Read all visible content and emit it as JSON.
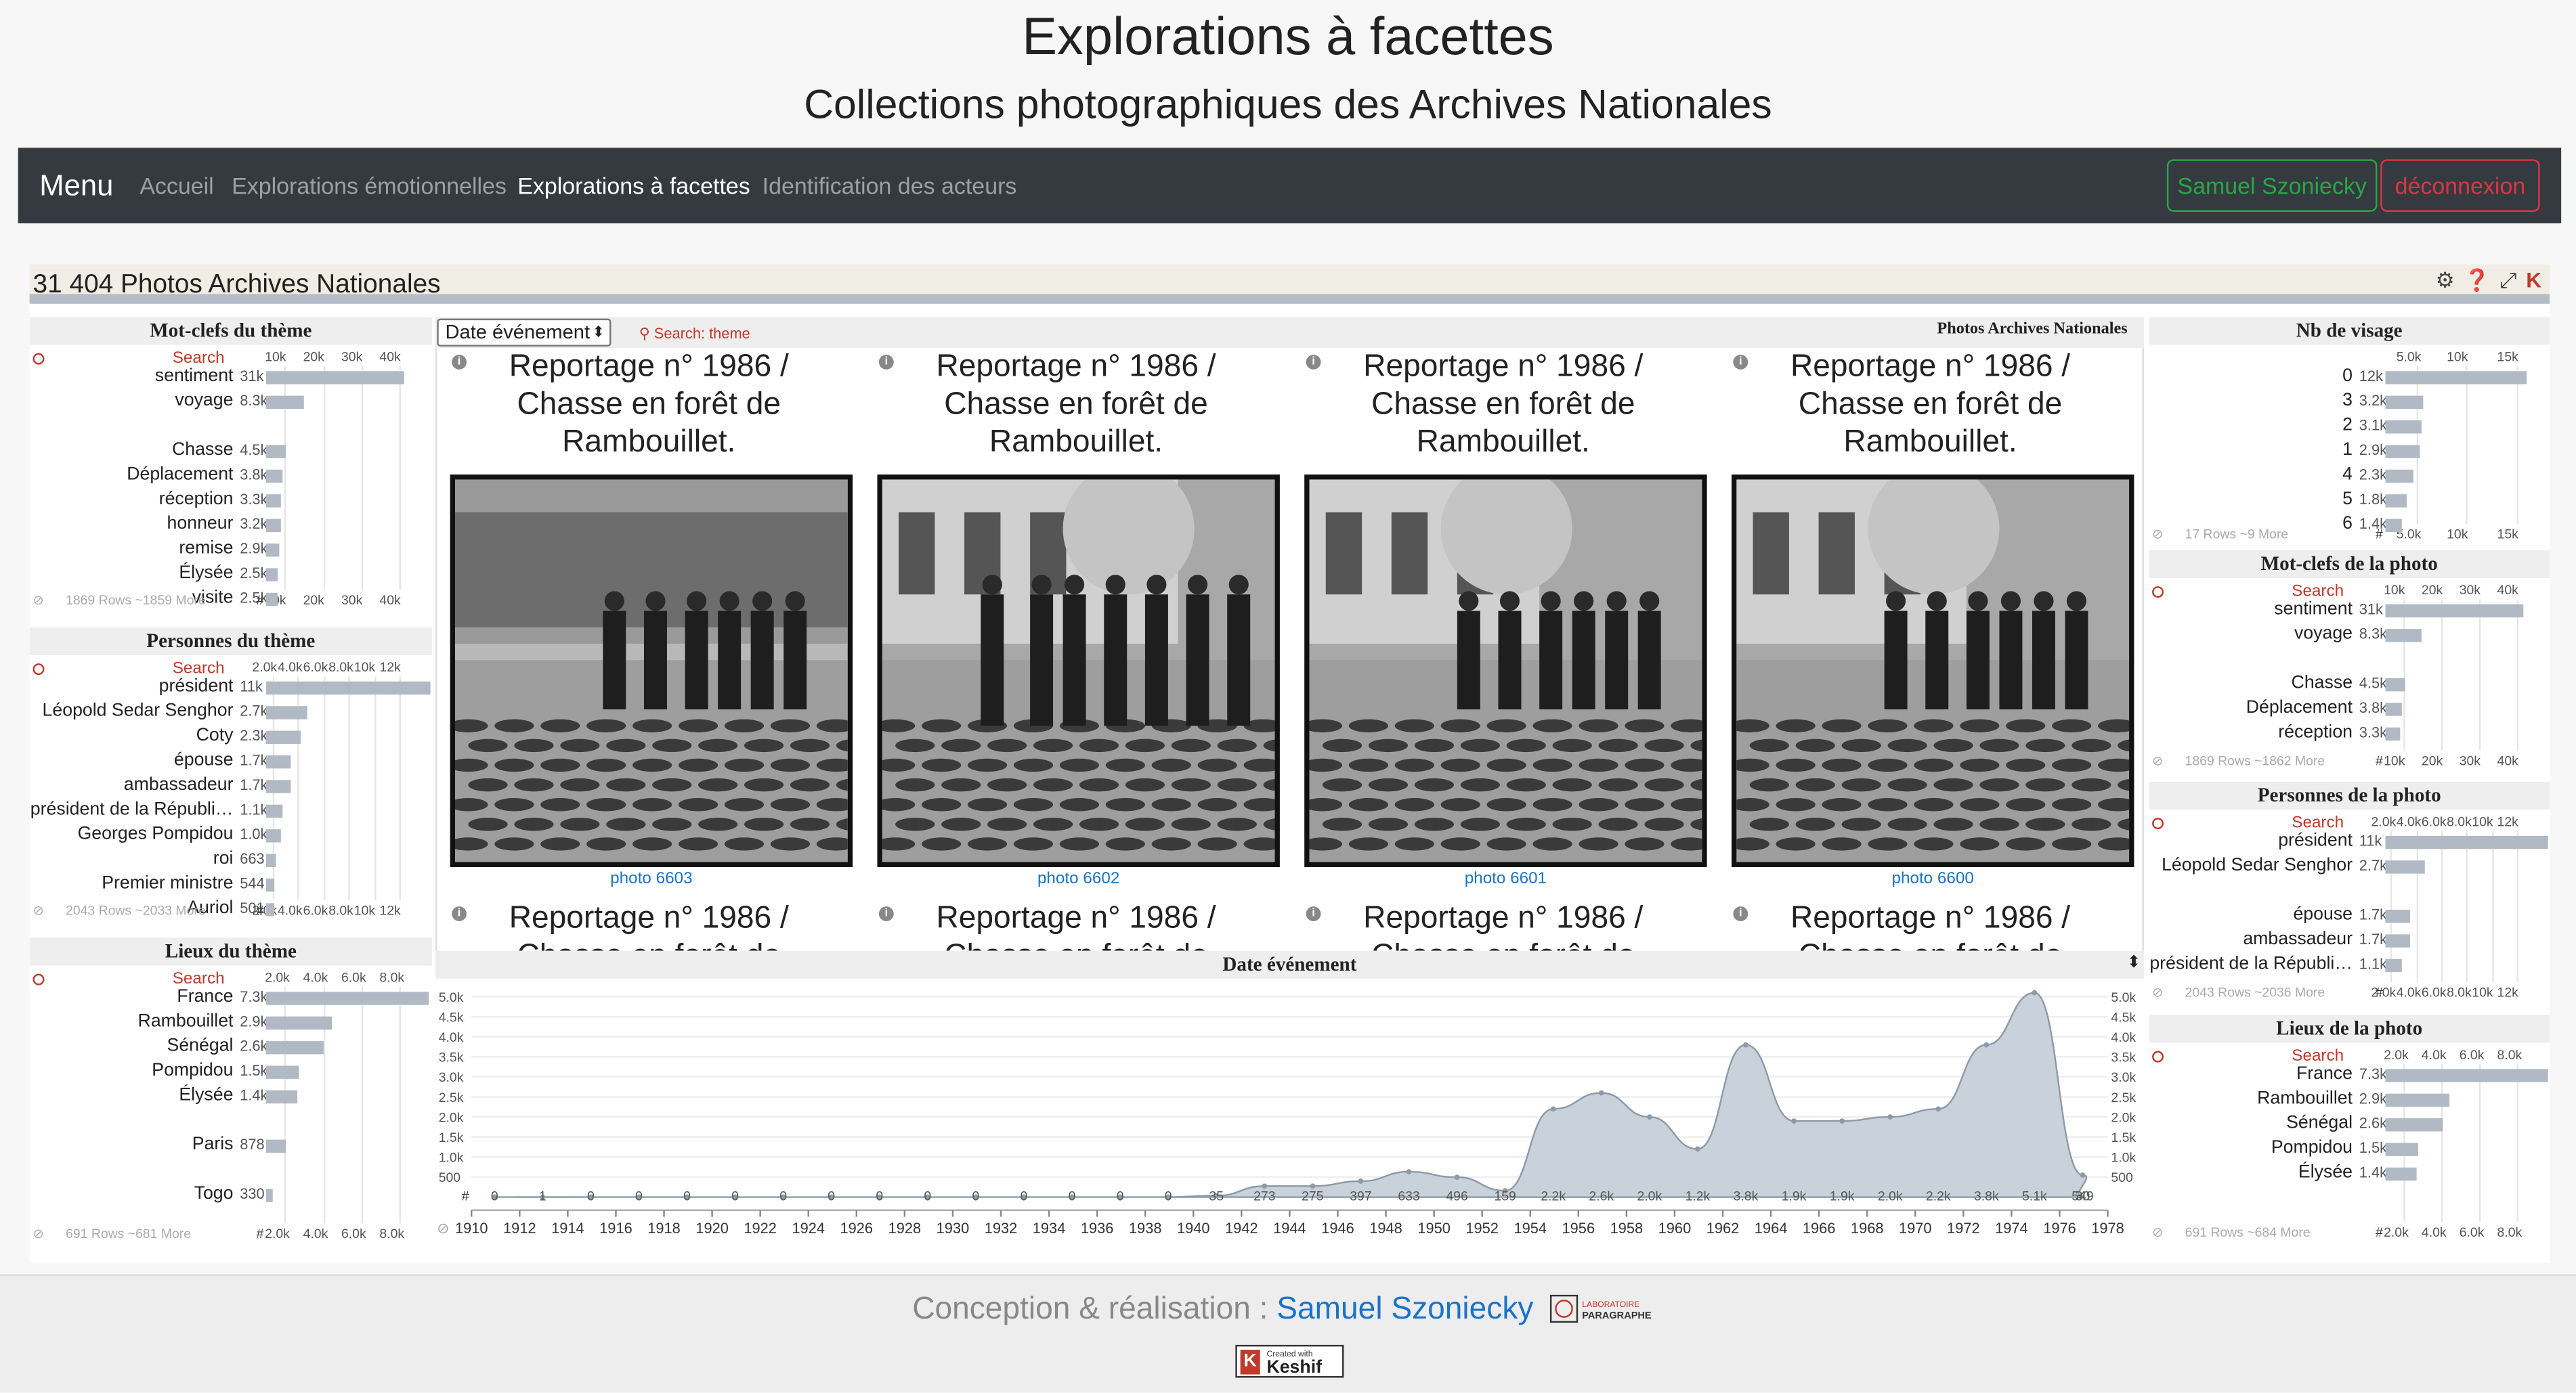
{
  "header": {
    "title": "Explorations à facettes",
    "subtitle": "Collections photographiques des Archives Nationales"
  },
  "nav": {
    "brand": "Menu",
    "links": [
      "Accueil",
      "Explorations émotionnelles",
      "Explorations à facettes",
      "Identification des acteurs"
    ],
    "active": 2,
    "user_button": "Samuel Szoniecky",
    "logout_button": "déconnexion"
  },
  "dashboard": {
    "count": "31 404",
    "title": "Photos Archives Nationales",
    "icons": [
      "gear-icon",
      "help-icon",
      "expand-icon",
      "keshif-icon"
    ]
  },
  "panels": {
    "left": [
      {
        "title": "Mot-clefs du thème",
        "search": "Search",
        "ticks": [
          "10k",
          "20k",
          "30k",
          "40k"
        ],
        "max": 40000,
        "rows": [
          {
            "label": "sentiment",
            "count": "31k",
            "value": 31000
          },
          {
            "label": "voyage",
            "count": "8.3k",
            "value": 8300
          },
          {
            "label": "",
            "count": "",
            "value": 0
          },
          {
            "label": "Chasse",
            "count": "4.5k",
            "value": 4500
          },
          {
            "label": "Déplacement",
            "count": "3.8k",
            "value": 3800
          },
          {
            "label": "réception",
            "count": "3.3k",
            "value": 3300
          },
          {
            "label": "honneur",
            "count": "3.2k",
            "value": 3200
          },
          {
            "label": "remise",
            "count": "2.9k",
            "value": 2900
          },
          {
            "label": "Élysée",
            "count": "2.5k",
            "value": 2500
          },
          {
            "label": "visite",
            "count": "2.5k",
            "value": 2500
          }
        ],
        "footer": "1869 Rows ~1859 More"
      },
      {
        "title": "Personnes du thème",
        "search": "Search",
        "ticks": [
          "2.0k",
          "4.0k",
          "6.0k",
          "8.0k",
          "10k",
          "12k"
        ],
        "max": 12000,
        "rows": [
          {
            "label": "président",
            "count": "11k",
            "value": 11000
          },
          {
            "label": "Léopold Sedar Senghor",
            "count": "2.7k",
            "value": 2700
          },
          {
            "label": "Coty",
            "count": "2.3k",
            "value": 2300
          },
          {
            "label": "épouse",
            "count": "1.7k",
            "value": 1700
          },
          {
            "label": "ambassadeur",
            "count": "1.7k",
            "value": 1700
          },
          {
            "label": "président de la Républi…",
            "count": "1.1k",
            "value": 1100
          },
          {
            "label": "Georges Pompidou",
            "count": "1.0k",
            "value": 1000
          },
          {
            "label": "roi",
            "count": "663",
            "value": 663
          },
          {
            "label": "Premier ministre",
            "count": "544",
            "value": 544
          },
          {
            "label": "Auriol",
            "count": "501",
            "value": 501
          }
        ],
        "footer": "2043 Rows ~2033 More"
      },
      {
        "title": "Lieux du thème",
        "search": "Search",
        "ticks": [
          "2.0k",
          "4.0k",
          "6.0k",
          "8.0k"
        ],
        "max": 8000,
        "rows": [
          {
            "label": "France",
            "count": "7.3k",
            "value": 7300
          },
          {
            "label": "Rambouillet",
            "count": "2.9k",
            "value": 2900
          },
          {
            "label": "Sénégal",
            "count": "2.6k",
            "value": 2600
          },
          {
            "label": "Pompidou",
            "count": "1.5k",
            "value": 1500
          },
          {
            "label": "Élysée",
            "count": "1.4k",
            "value": 1400
          },
          {
            "label": "",
            "count": "",
            "value": 0
          },
          {
            "label": "Paris",
            "count": "878",
            "value": 878
          },
          {
            "label": "",
            "count": "",
            "value": 0
          },
          {
            "label": "Togo",
            "count": "330",
            "value": 330
          }
        ],
        "footer": "691 Rows ~681 More"
      }
    ],
    "right": [
      {
        "title": "Nb de visage",
        "search": "",
        "ticks": [
          "5.0k",
          "10k",
          "15k"
        ],
        "max": 15000,
        "rows": [
          {
            "label": "0",
            "count": "12k",
            "value": 12000
          },
          {
            "label": "3",
            "count": "3.2k",
            "value": 3200
          },
          {
            "label": "2",
            "count": "3.1k",
            "value": 3100
          },
          {
            "label": "1",
            "count": "2.9k",
            "value": 2900
          },
          {
            "label": "4",
            "count": "2.3k",
            "value": 2300
          },
          {
            "label": "5",
            "count": "1.8k",
            "value": 1800
          },
          {
            "label": "6",
            "count": "1.4k",
            "value": 1400
          }
        ],
        "footer": "17 Rows ~9 More"
      },
      {
        "title": "Mot-clefs de la photo",
        "search": "Search",
        "ticks": [
          "10k",
          "20k",
          "30k",
          "40k"
        ],
        "max": 40000,
        "rows": [
          {
            "label": "sentiment",
            "count": "31k",
            "value": 31000
          },
          {
            "label": "voyage",
            "count": "8.3k",
            "value": 8300
          },
          {
            "label": "",
            "count": "",
            "value": 0
          },
          {
            "label": "Chasse",
            "count": "4.5k",
            "value": 4500
          },
          {
            "label": "Déplacement",
            "count": "3.8k",
            "value": 3800
          },
          {
            "label": "réception",
            "count": "3.3k",
            "value": 3300
          }
        ],
        "footer": "1869 Rows ~1862 More"
      },
      {
        "title": "Personnes de la photo",
        "search": "Search",
        "ticks": [
          "2.0k",
          "4.0k",
          "6.0k",
          "8.0k",
          "10k",
          "12k"
        ],
        "max": 12000,
        "rows": [
          {
            "label": "président",
            "count": "11k",
            "value": 11000
          },
          {
            "label": "Léopold Sedar Senghor",
            "count": "2.7k",
            "value": 2700
          },
          {
            "label": "",
            "count": "",
            "value": 0
          },
          {
            "label": "épouse",
            "count": "1.7k",
            "value": 1700
          },
          {
            "label": "ambassadeur",
            "count": "1.7k",
            "value": 1700
          },
          {
            "label": "président de la Républi…",
            "count": "1.1k",
            "value": 1100
          }
        ],
        "footer": "2043 Rows ~2036 More"
      },
      {
        "title": "Lieux de la photo",
        "search": "Search",
        "ticks": [
          "2.0k",
          "4.0k",
          "6.0k",
          "8.0k"
        ],
        "max": 8000,
        "rows": [
          {
            "label": "France",
            "count": "7.3k",
            "value": 7300
          },
          {
            "label": "Rambouillet",
            "count": "2.9k",
            "value": 2900
          },
          {
            "label": "Sénégal",
            "count": "2.6k",
            "value": 2600
          },
          {
            "label": "Pompidou",
            "count": "1.5k",
            "value": 1500
          },
          {
            "label": "Élysée",
            "count": "1.4k",
            "value": 1400
          }
        ],
        "footer": "691 Rows ~684 More"
      }
    ]
  },
  "list": {
    "sort_label": "Date événement",
    "search": "Search: theme",
    "title": "Photos Archives Nationales",
    "cards": [
      {
        "title": "Reportage n° 1986 / Chasse en forêt de Rambouillet.",
        "caption": "photo 6603"
      },
      {
        "title": "Reportage n° 1986 / Chasse en forêt de Rambouillet.",
        "caption": "photo 6602"
      },
      {
        "title": "Reportage n° 1986 / Chasse en forêt de Rambouillet.",
        "caption": "photo 6601"
      },
      {
        "title": "Reportage n° 1986 / Chasse en forêt de Rambouillet.",
        "caption": "photo 6600"
      },
      {
        "title": "Reportage n° 1986 / Chasse en forêt de",
        "caption": ""
      },
      {
        "title": "Reportage n° 1986 / Chasse en forêt de",
        "caption": ""
      },
      {
        "title": "Reportage n° 1986 / Chasse en forêt de",
        "caption": ""
      },
      {
        "title": "Reportage n° 1986 / Chasse en forêt de",
        "caption": ""
      }
    ]
  },
  "timeline_title": "Date événement",
  "chart_data": {
    "type": "area",
    "title": "Date événement",
    "x": [
      1910,
      1912,
      1914,
      1916,
      1918,
      1920,
      1922,
      1924,
      1926,
      1928,
      1930,
      1932,
      1934,
      1936,
      1938,
      1940,
      1942,
      1944,
      1946,
      1948,
      1950,
      1952,
      1954,
      1956,
      1958,
      1960,
      1962,
      1964,
      1966,
      1968,
      1970,
      1972,
      1974,
      1976
    ],
    "values": [
      0,
      1,
      0,
      0,
      0,
      0,
      0,
      0,
      0,
      0,
      0,
      0,
      0,
      0,
      0,
      35,
      273,
      275,
      397,
      633,
      496,
      159,
      2200,
      2600,
      2000,
      1200,
      3800,
      1900,
      1900,
      2000,
      2200,
      3800,
      5100,
      549
    ],
    "value_labels": [
      "0",
      "1",
      "0",
      "0",
      "0",
      "0",
      "0",
      "0",
      "0",
      "0",
      "0",
      "0",
      "0",
      "0",
      "0",
      "35",
      "273",
      "275",
      "397",
      "633",
      "496",
      "159",
      "2.2k",
      "2.6k",
      "2.0k",
      "1.2k",
      "3.8k",
      "1.9k",
      "1.9k",
      "2.0k",
      "2.2k",
      "3.8k",
      "5.1k",
      "549"
    ],
    "extra_label": "30",
    "y_ticks": [
      "500",
      "1.0k",
      "1.5k",
      "2.0k",
      "2.5k",
      "3.0k",
      "3.5k",
      "4.0k",
      "4.5k",
      "5.0k"
    ],
    "x_ticks": [
      "1910",
      "1912",
      "1914",
      "1916",
      "1918",
      "1920",
      "1922",
      "1924",
      "1926",
      "1928",
      "1930",
      "1932",
      "1934",
      "1936",
      "1938",
      "1940",
      "1942",
      "1944",
      "1946",
      "1948",
      "1950",
      "1952",
      "1954",
      "1956",
      "1958",
      "1960",
      "1962",
      "1964",
      "1966",
      "1968",
      "1970",
      "1972",
      "1974",
      "1976",
      "1978"
    ],
    "ylim": [
      0,
      5000
    ],
    "color": "#c9d1da"
  },
  "footer": {
    "prefix": "Conception & réalisation :",
    "author": "Samuel Szoniecky",
    "lab_line1": "LABORATOIRE",
    "lab_line2": "PARAGRAPHE",
    "badge_small": "Created with",
    "badge_name": "Keshif"
  }
}
